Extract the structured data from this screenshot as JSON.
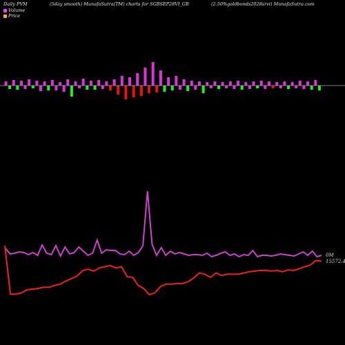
{
  "header": {
    "left": "Daily PVM",
    "middle": "(5day smooth) MunafaSutra(TM) charts for SGBSEP28VI_GB",
    "right": "(2.50%goldbonds2028srvi) MunafaSutra.com"
  },
  "legend": {
    "volume": {
      "label": "Volume",
      "color": "#ee44ee"
    },
    "price": {
      "label": "Price",
      "color": "#ffaa33"
    }
  },
  "colors": {
    "volume_up": "#dd33dd",
    "volume_down_green": "#22ee22",
    "volume_down_red": "#ee1111",
    "volume_line": "#cc44cc",
    "price_line": "#ee2222",
    "baseline": "#aaaaaa"
  },
  "chart_data": {
    "type": "line",
    "title": "(5day smooth) MunafaSutra(TM) charts for SGBSEP28VI_GB",
    "volume_axis_label": "0M",
    "price_axis_label": "15572.45",
    "volume_bars": [
      {
        "v": 6,
        "c": "m"
      },
      {
        "v": -5,
        "c": "g"
      },
      {
        "v": 8,
        "c": "m"
      },
      {
        "v": -6,
        "c": "g"
      },
      {
        "v": 7,
        "c": "m"
      },
      {
        "v": -5,
        "c": "m"
      },
      {
        "v": 9,
        "c": "m"
      },
      {
        "v": -4,
        "c": "g"
      },
      {
        "v": 7,
        "c": "m"
      },
      {
        "v": -8,
        "c": "m"
      },
      {
        "v": 6,
        "c": "m"
      },
      {
        "v": -7,
        "c": "g"
      },
      {
        "v": 8,
        "c": "m"
      },
      {
        "v": -7,
        "c": "m"
      },
      {
        "v": 5,
        "c": "m"
      },
      {
        "v": -9,
        "c": "m"
      },
      {
        "v": 9,
        "c": "m"
      },
      {
        "v": -16,
        "c": "g"
      },
      {
        "v": 6,
        "c": "m"
      },
      {
        "v": -4,
        "c": "m"
      },
      {
        "v": 10,
        "c": "m"
      },
      {
        "v": -6,
        "c": "g"
      },
      {
        "v": 7,
        "c": "m"
      },
      {
        "v": -6,
        "c": "g"
      },
      {
        "v": 8,
        "c": "m"
      },
      {
        "v": -5,
        "c": "m"
      },
      {
        "v": 6,
        "c": "m"
      },
      {
        "v": -7,
        "c": "r"
      },
      {
        "v": 9,
        "c": "m"
      },
      {
        "v": -13,
        "c": "r"
      },
      {
        "v": 14,
        "c": "m"
      },
      {
        "v": -20,
        "c": "r"
      },
      {
        "v": 12,
        "c": "m"
      },
      {
        "v": -17,
        "c": "r"
      },
      {
        "v": 18,
        "c": "m"
      },
      {
        "v": -15,
        "c": "r"
      },
      {
        "v": 26,
        "c": "m"
      },
      {
        "v": -11,
        "c": "r"
      },
      {
        "v": 34,
        "c": "m"
      },
      {
        "v": -10,
        "c": "r"
      },
      {
        "v": 22,
        "c": "m"
      },
      {
        "v": -9,
        "c": "g"
      },
      {
        "v": 12,
        "c": "m"
      },
      {
        "v": -7,
        "c": "g"
      },
      {
        "v": 14,
        "c": "m"
      },
      {
        "v": -6,
        "c": "m"
      },
      {
        "v": 9,
        "c": "m"
      },
      {
        "v": -8,
        "c": "g"
      },
      {
        "v": 7,
        "c": "m"
      },
      {
        "v": -6,
        "c": "m"
      },
      {
        "v": 6,
        "c": "m"
      },
      {
        "v": -11,
        "c": "g"
      },
      {
        "v": 5,
        "c": "m"
      },
      {
        "v": -4,
        "c": "m"
      },
      {
        "v": 6,
        "c": "m"
      },
      {
        "v": -5,
        "c": "g"
      },
      {
        "v": 5,
        "c": "m"
      },
      {
        "v": -4,
        "c": "m"
      },
      {
        "v": 6,
        "c": "m"
      },
      {
        "v": -5,
        "c": "m"
      },
      {
        "v": 7,
        "c": "m"
      },
      {
        "v": -6,
        "c": "g"
      },
      {
        "v": 5,
        "c": "m"
      },
      {
        "v": -5,
        "c": "m"
      },
      {
        "v": 6,
        "c": "m"
      },
      {
        "v": -4,
        "c": "g"
      },
      {
        "v": 7,
        "c": "m"
      },
      {
        "v": -5,
        "c": "m"
      },
      {
        "v": 6,
        "c": "m"
      },
      {
        "v": -4,
        "c": "r"
      },
      {
        "v": 5,
        "c": "m"
      },
      {
        "v": -4,
        "c": "m"
      },
      {
        "v": 6,
        "c": "m"
      },
      {
        "v": -5,
        "c": "g"
      },
      {
        "v": 5,
        "c": "m"
      },
      {
        "v": -4,
        "c": "m"
      },
      {
        "v": 7,
        "c": "m"
      },
      {
        "v": -5,
        "c": "m"
      },
      {
        "v": 6,
        "c": "m"
      },
      {
        "v": -6,
        "c": "g"
      },
      {
        "v": 8,
        "c": "m"
      },
      {
        "v": -7,
        "c": "g"
      }
    ],
    "volume_line": [
      12,
      4,
      5,
      7,
      6,
      3,
      6,
      2,
      17,
      5,
      3,
      16,
      1,
      14,
      4,
      6,
      14,
      8,
      2,
      5,
      24,
      5,
      10,
      9,
      9,
      4,
      3,
      8,
      2,
      6,
      16,
      95,
      18,
      2,
      13,
      2,
      8,
      4,
      6,
      4,
      2,
      3,
      3,
      2,
      5,
      0,
      2,
      5,
      7,
      2,
      4,
      0,
      3,
      2,
      9,
      0,
      2,
      2,
      1,
      2,
      4,
      3,
      2,
      1,
      4,
      7,
      2,
      8,
      0,
      2
    ],
    "price_line": [
      26,
      27,
      22,
      21,
      21,
      21,
      21,
      21,
      21,
      21,
      21,
      21,
      21,
      21,
      21,
      21,
      21,
      21,
      21,
      21,
      21,
      21,
      21,
      21,
      21,
      21,
      21,
      21,
      21,
      21,
      21,
      21,
      21,
      21,
      21,
      21,
      21,
      21,
      21,
      21
    ],
    "price_series": [
      80,
      2,
      2,
      4,
      9,
      10,
      11,
      13,
      13,
      16,
      18,
      23,
      27,
      31,
      40,
      42,
      39,
      44,
      46,
      48,
      44,
      46,
      30,
      29,
      16,
      11,
      1,
      4,
      14,
      18,
      18,
      19,
      19,
      22,
      28,
      36,
      34,
      29,
      36,
      32,
      34,
      34,
      34,
      36,
      38,
      39,
      40,
      40,
      39,
      40,
      38,
      41,
      40,
      43,
      46,
      49,
      56,
      55
    ]
  }
}
